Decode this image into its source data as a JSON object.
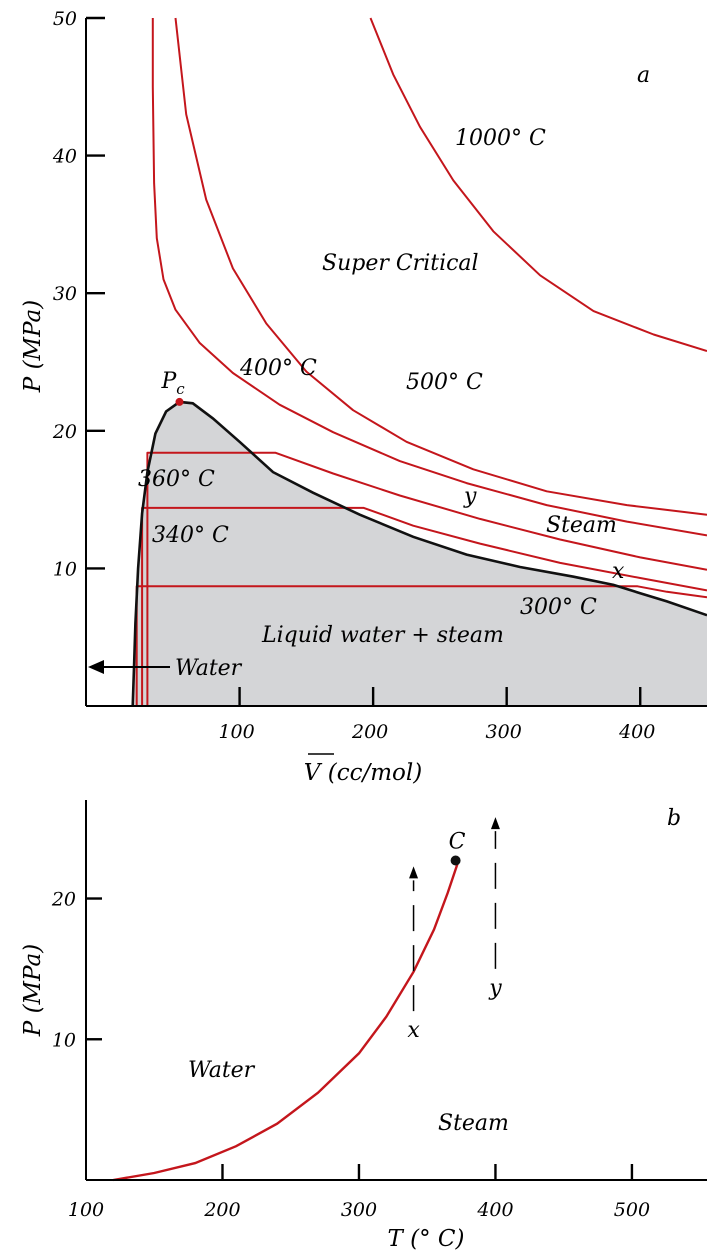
{
  "colors": {
    "isotherm": "#c4161c",
    "boundary": "#111111",
    "two_phase_fill": "#d4d5d7",
    "point_c": "#111111",
    "point_pc": "#c4161c"
  },
  "chart_data": [
    {
      "panel": "a",
      "type": "line",
      "panel_label": "a",
      "xlabel": "V (cc/mol)",
      "ylabel": "P (MPa)",
      "xlim": [
        -15,
        450
      ],
      "ylim": [
        0,
        50
      ],
      "x_ticks": [
        100,
        200,
        300,
        400
      ],
      "x_tick_labels": [
        "100",
        "200",
        "300",
        "400"
      ],
      "y_ticks": [
        10,
        20,
        30,
        40,
        50
      ],
      "y_tick_labels": [
        "10",
        "20",
        "30",
        "40",
        "50"
      ],
      "grid": false,
      "critical_point": {
        "label": "Pc",
        "label_base": "P",
        "label_sub": "c",
        "x": 55,
        "y": 22.1
      },
      "two_phase_boundary": [
        [
          20,
          0
        ],
        [
          21,
          3
        ],
        [
          22,
          6
        ],
        [
          24,
          10
        ],
        [
          27,
          14
        ],
        [
          31,
          17
        ],
        [
          37,
          19.8
        ],
        [
          45,
          21.4
        ],
        [
          55,
          22.1
        ],
        [
          65,
          22
        ],
        [
          80,
          20.9
        ],
        [
          100,
          19.2
        ],
        [
          125,
          17
        ],
        [
          155,
          15.5
        ],
        [
          190,
          13.9
        ],
        [
          230,
          12.3
        ],
        [
          270,
          11
        ],
        [
          310,
          10.1
        ],
        [
          350,
          9.4
        ],
        [
          380,
          8.8
        ],
        [
          400,
          8.2
        ],
        [
          420,
          7.6
        ],
        [
          450,
          6.6
        ],
        [
          450,
          0
        ]
      ],
      "series": [
        {
          "name": "300° C",
          "label": "300° C",
          "points": [
            [
              23,
              0
            ],
            [
              23,
              8.7
            ],
            [
              398,
              8.7
            ],
            [
              420,
              8.3
            ],
            [
              450,
              7.9
            ]
          ]
        },
        {
          "name": "340° C",
          "label": "340° C",
          "points": [
            [
              27,
              0
            ],
            [
              27,
              14.4
            ],
            [
              193,
              14.4
            ],
            [
              230,
              13.1
            ],
            [
              280,
              11.8
            ],
            [
              340,
              10.4
            ],
            [
              400,
              9.3
            ],
            [
              450,
              8.4
            ]
          ]
        },
        {
          "name": "360° C",
          "label": "360° C",
          "points": [
            [
              31,
              0
            ],
            [
              31,
              18.4
            ],
            [
              127,
              18.4
            ],
            [
              170,
              16.9
            ],
            [
              220,
              15.3
            ],
            [
              280,
              13.6
            ],
            [
              340,
              12.1
            ],
            [
              400,
              10.8
            ],
            [
              450,
              9.9
            ]
          ]
        },
        {
          "name": "400° C",
          "label": "400° C",
          "points": [
            [
              35,
              50
            ],
            [
              35,
              45
            ],
            [
              36,
              38
            ],
            [
              38,
              34
            ],
            [
              43,
              31
            ],
            [
              52,
              28.8
            ],
            [
              70,
              26.4
            ],
            [
              95,
              24.2
            ],
            [
              130,
              21.9
            ],
            [
              170,
              19.9
            ],
            [
              220,
              17.8
            ],
            [
              270,
              16.2
            ],
            [
              330,
              14.6
            ],
            [
              390,
              13.4
            ],
            [
              450,
              12.4
            ]
          ]
        },
        {
          "name": "500° C",
          "label": "500° C",
          "points": [
            [
              52,
              50
            ],
            [
              60,
              43
            ],
            [
              75,
              36.8
            ],
            [
              95,
              31.8
            ],
            [
              120,
              27.8
            ],
            [
              150,
              24.3
            ],
            [
              185,
              21.5
            ],
            [
              225,
              19.2
            ],
            [
              275,
              17.2
            ],
            [
              330,
              15.6
            ],
            [
              390,
              14.6
            ],
            [
              450,
              13.9
            ]
          ]
        },
        {
          "name": "1000° C",
          "label": "1000° C",
          "points": [
            [
              198,
              50
            ],
            [
              215,
              45.9
            ],
            [
              235,
              42.1
            ],
            [
              260,
              38.2
            ],
            [
              290,
              34.5
            ],
            [
              325,
              31.3
            ],
            [
              365,
              28.7
            ],
            [
              410,
              27
            ],
            [
              450,
              25.8
            ]
          ]
        }
      ],
      "annotations": {
        "super_critical": "Super Critical",
        "steam": "Steam",
        "liquid_steam": "Liquid water + steam",
        "water": "Water",
        "path_x": "x",
        "path_y": "y"
      }
    },
    {
      "panel": "b",
      "type": "line",
      "panel_label": "b",
      "xlabel": "T (° C)",
      "ylabel": "P (MPa)",
      "xlim": [
        100,
        555
      ],
      "ylim": [
        0,
        27
      ],
      "x_ticks": [
        100,
        200,
        300,
        400,
        500
      ],
      "x_tick_labels": [
        "100",
        "200",
        "300",
        "400",
        "500"
      ],
      "y_ticks": [
        10,
        20
      ],
      "y_tick_labels": [
        "10",
        "20"
      ],
      "grid": false,
      "critical_point": {
        "label": "C",
        "x": 373,
        "y": 22.7
      },
      "series": [
        {
          "name": "vapor pressure curve",
          "points": [
            [
              120,
              0
            ],
            [
              150,
              0.5
            ],
            [
              180,
              1.2
            ],
            [
              210,
              2.4
            ],
            [
              240,
              4
            ],
            [
              270,
              6.2
            ],
            [
              300,
              9
            ],
            [
              320,
              11.6
            ],
            [
              340,
              14.8
            ],
            [
              355,
              17.8
            ],
            [
              365,
              20.4
            ],
            [
              373,
              22.7
            ]
          ]
        }
      ],
      "paths": [
        {
          "label": "x",
          "x": 340,
          "y_from": 12,
          "y_to": 22
        },
        {
          "label": "y",
          "x": 400,
          "y_from": 15,
          "y_to": 25.5
        }
      ],
      "annotations": {
        "water": "Water",
        "steam": "Steam"
      }
    }
  ]
}
